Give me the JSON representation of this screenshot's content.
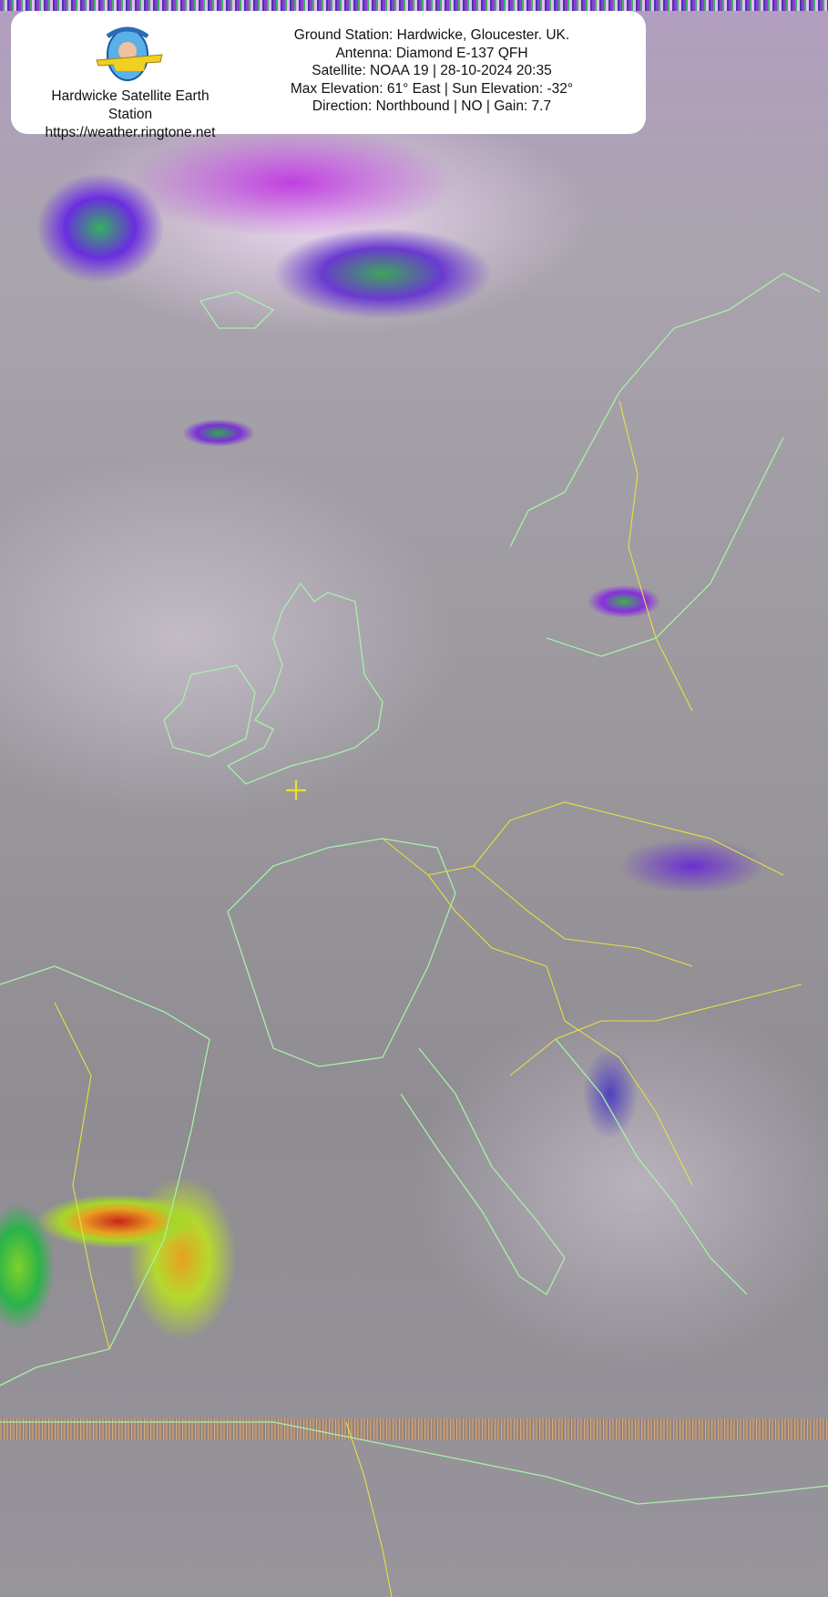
{
  "header": {
    "station_name": "Hardwicke Satellite Earth",
    "station_name_2": "Station",
    "website": "https://weather.ringtone.net",
    "logo_name": "The Chubby Flyer",
    "info_lines": [
      "Ground Station: Hardwicke, Gloucester. UK.",
      "Antenna: Diamond E-137 QFH",
      "Satellite: NOAA 19 | 28-10-2024 20:35",
      "Max Elevation: 61° East | Sun Elevation: -32°",
      "Direction: Northbound | NO | Gain: 7.7"
    ]
  },
  "map": {
    "type": "NOAA APT thermal infrared image with MCIR-style color enhancement",
    "coastline_color": "#a8f0a8",
    "border_color": "#e8e040",
    "ground_station_marker_color": "#f0e020",
    "ground_station_marker_icon": "crosshair-plus"
  }
}
